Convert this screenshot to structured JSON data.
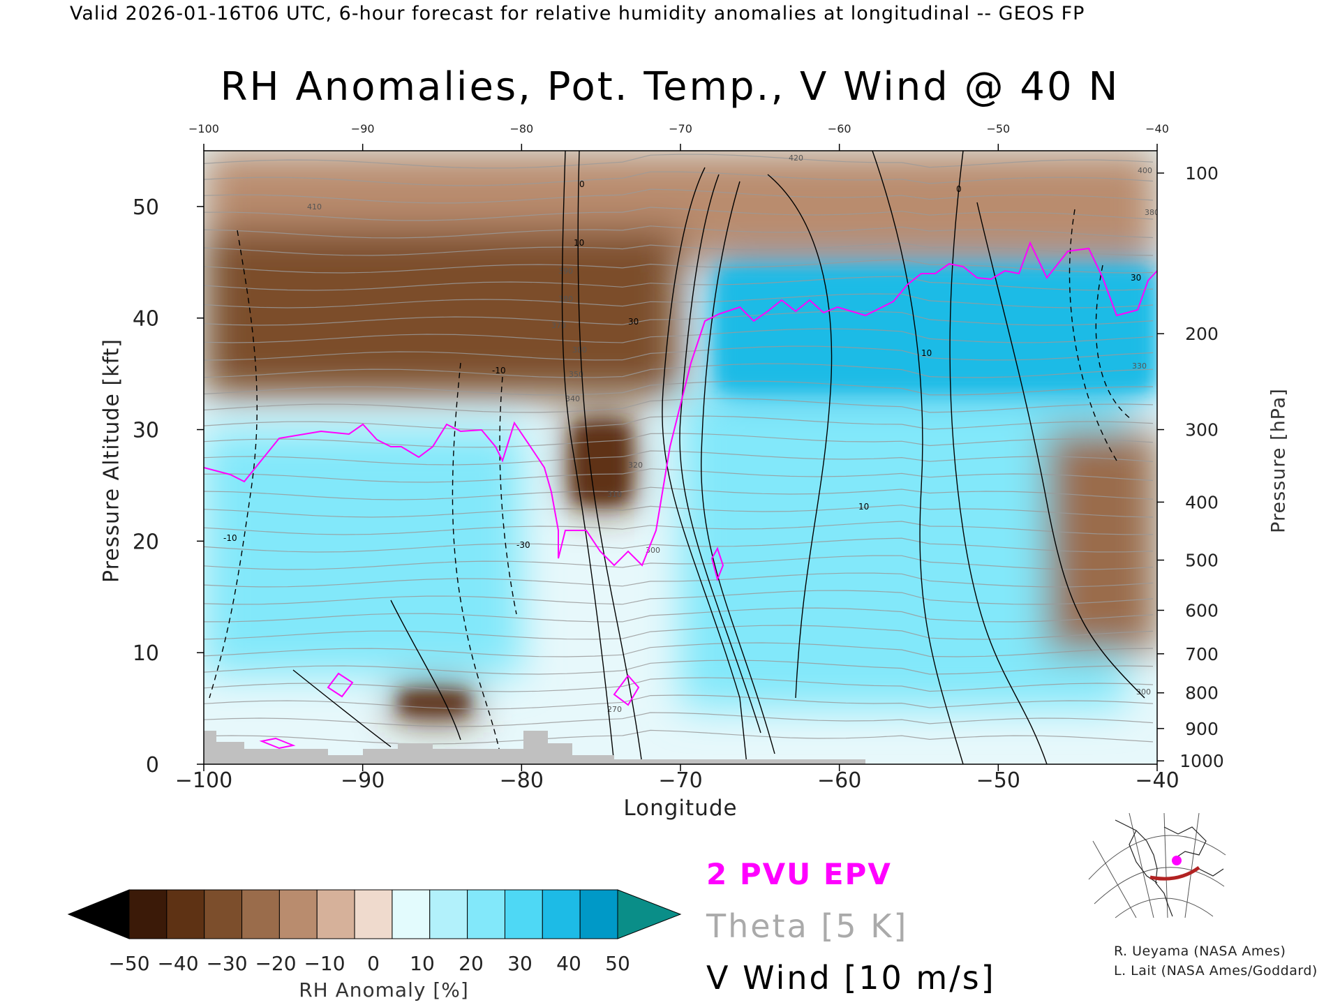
{
  "header": {
    "valid_line": "Valid 2026-01-16T06 UTC, 6-hour forecast for relative humidity anomalies at longitudinal -- GEOS FP"
  },
  "chart_data": {
    "type": "heatmap",
    "title": "RH Anomalies, Pot. Temp., V Wind @ 40 N",
    "xlabel": "Longitude",
    "ylabel": "Pressure Altitude [kft]",
    "y2label": "Pressure [hPa]",
    "xlim": [
      -100,
      -40
    ],
    "ylim": [
      0,
      55
    ],
    "x_ticks": [
      "−100",
      "−90",
      "−80",
      "−70",
      "−60",
      "−50",
      "−40"
    ],
    "x_tick_values": [
      -100,
      -90,
      -80,
      -70,
      -60,
      -50,
      -40
    ],
    "y_ticks": [
      "0",
      "10",
      "20",
      "30",
      "40",
      "50"
    ],
    "y_tick_values": [
      0,
      10,
      20,
      30,
      40,
      50
    ],
    "pressure_ticks": [
      {
        "label": "100",
        "kft": 53
      },
      {
        "label": "200",
        "kft": 38.6
      },
      {
        "label": "300",
        "kft": 30
      },
      {
        "label": "400",
        "kft": 23.5
      },
      {
        "label": "500",
        "kft": 18.3
      },
      {
        "label": "600",
        "kft": 13.8
      },
      {
        "label": "700",
        "kft": 9.9
      },
      {
        "label": "800",
        "kft": 6.4
      },
      {
        "label": "900",
        "kft": 3.2
      },
      {
        "label": "1000",
        "kft": 0.3
      }
    ],
    "rh_anomaly_field": [
      {
        "lon": [
          -100,
          -40
        ],
        "kft": [
          45,
          55
        ],
        "value": -25
      },
      {
        "lon": [
          -100,
          -70
        ],
        "kft": [
          33,
          48
        ],
        "value": -40
      },
      {
        "lon": [
          -77,
          -73
        ],
        "kft": [
          23,
          31
        ],
        "value": -50
      },
      {
        "lon": [
          -68,
          -40
        ],
        "kft": [
          33,
          45
        ],
        "value": 50
      },
      {
        "lon": [
          -70,
          -42
        ],
        "kft": [
          5,
          33
        ],
        "value": 30
      },
      {
        "lon": [
          -100,
          -80
        ],
        "kft": [
          8,
          30
        ],
        "value": 25
      },
      {
        "lon": [
          -47,
          -40
        ],
        "kft": [
          10,
          30
        ],
        "value": -35
      },
      {
        "lon": [
          -88,
          -83
        ],
        "kft": [
          4,
          7
        ],
        "value": -50
      }
    ],
    "theta_levels": [
      "270",
      "300",
      "310",
      "320",
      "330",
      "340",
      "350",
      "370",
      "380",
      "390",
      "400",
      "410",
      "420"
    ],
    "v_wind_levels": [
      "-30",
      "-10",
      "0",
      "10",
      "30"
    ],
    "epv_contour": "2 PVU",
    "colorbar": {
      "label": "RH Anomaly [%]",
      "tick_labels": [
        "−50",
        "−40",
        "−30",
        "−20",
        "−10",
        "0",
        "10",
        "20",
        "30",
        "40",
        "50"
      ],
      "colors": [
        "#000000",
        "#3b1a08",
        "#5e3214",
        "#7c4e2c",
        "#9a6c4b",
        "#b98c6e",
        "#d6b19a",
        "#efdacd",
        "#e3fbfd",
        "#b2f1fb",
        "#82e8fa",
        "#4ed8f5",
        "#1dbbe6",
        "#0099c7",
        "#0a8e88"
      ]
    },
    "legend": [
      "2 PVU EPV",
      "Theta [5 K]",
      "V Wind [10 m/s]"
    ],
    "colors": {
      "epv": "#ff00ff",
      "theta": "#aaaaaa",
      "wind": "#000000",
      "topography": "#c0c0c0"
    }
  },
  "credits": [
    "R. Ueyama (NASA Ames)",
    "L. Lait (NASA Ames/Goddard)"
  ]
}
